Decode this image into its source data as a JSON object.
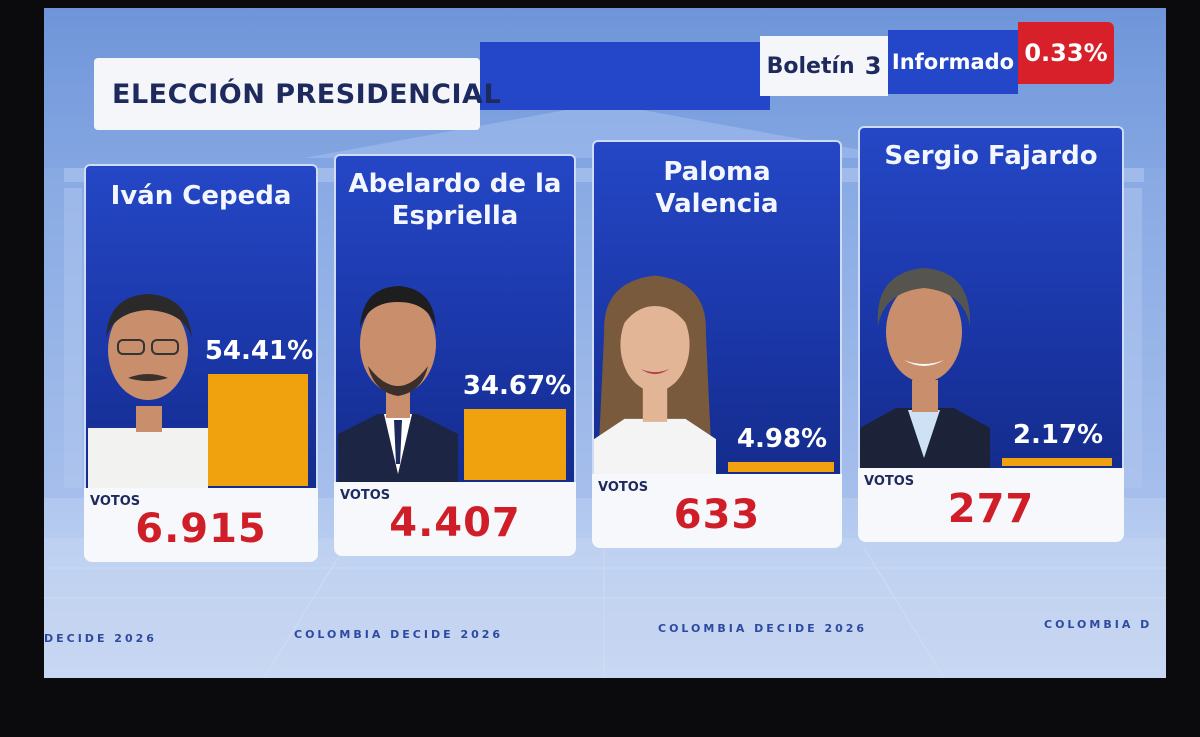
{
  "header": {
    "title": "ELECCIÓN PRESIDENCIAL",
    "bulletin_label": "Boletín",
    "bulletin_number": "3",
    "informed_label": "Informado",
    "informed_value": "0.33%"
  },
  "chart_data": {
    "type": "bar",
    "categories": [
      "Iván Cepeda",
      "Abelardo de la Espriella",
      "Paloma Valencia",
      "Sergio Fajardo"
    ],
    "values": [
      54.41,
      34.67,
      4.98,
      2.17
    ],
    "value_labels": [
      "54.41%",
      "34.67%",
      "4.98%",
      "2.17%"
    ],
    "votes": [
      6915,
      4407,
      633,
      277
    ],
    "votes_labels": [
      "6.915",
      "4.407",
      "633",
      "277"
    ],
    "votes_caption": "VOTOS",
    "bar_color": "#f0a20e",
    "title": "ELECCIÓN PRESIDENCIAL"
  },
  "candidates": [
    {
      "name_line1": "Iván Cepeda",
      "name_line2": "",
      "pct": "54.41%",
      "votes_caption": "VOTOS",
      "votes": "6.915"
    },
    {
      "name_line1": "Abelardo de la",
      "name_line2": "Espriella",
      "pct": "34.67%",
      "votes_caption": "VOTOS",
      "votes": "4.407"
    },
    {
      "name_line1": "Paloma",
      "name_line2": "Valencia",
      "pct": "4.98%",
      "votes_caption": "VOTOS",
      "votes": "633"
    },
    {
      "name_line1": "Sergio Fajardo",
      "name_line2": "",
      "pct": "2.17%",
      "votes_caption": "VOTOS",
      "votes": "277"
    }
  ],
  "footer": {
    "watermark": "COLOMBIA DECIDE 2026",
    "watermark_left": "DECIDE 2026",
    "watermark_right": "COLOMBIA D"
  },
  "colors": {
    "accent_blue": "#2447c9",
    "accent_red": "#d8202a",
    "votes_red": "#d01e28",
    "bar_orange": "#f0a20e"
  }
}
